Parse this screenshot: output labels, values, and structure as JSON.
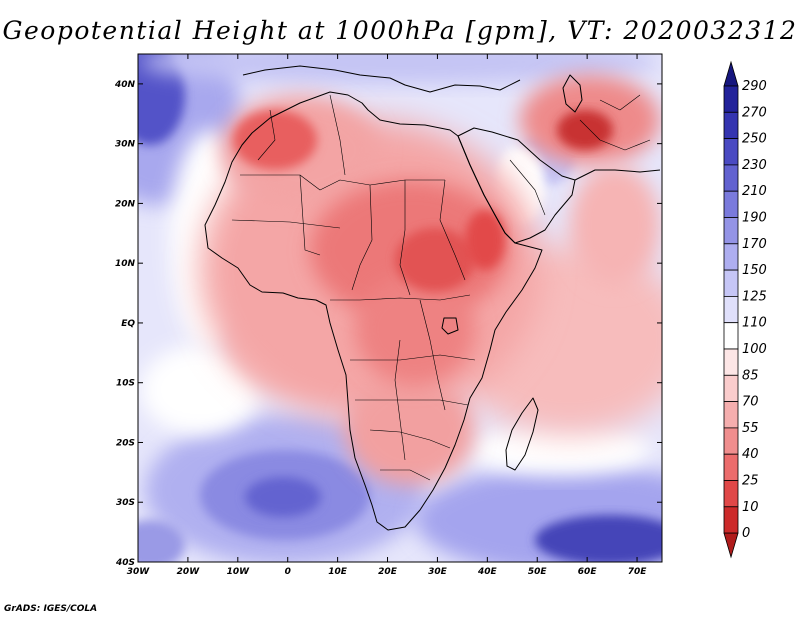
{
  "title": "Geopotential Height at 1000hPa [gpm], VT: 2020032312",
  "credit": "GrADS: IGES/COLA",
  "map": {
    "lon_range": [
      -30,
      75
    ],
    "lat_range": [
      -40,
      45
    ],
    "lon_ticks": [
      {
        "value": -30,
        "label": "30W"
      },
      {
        "value": -20,
        "label": "20W"
      },
      {
        "value": -10,
        "label": "10W"
      },
      {
        "value": 0,
        "label": "0"
      },
      {
        "value": 10,
        "label": "10E"
      },
      {
        "value": 20,
        "label": "20E"
      },
      {
        "value": 30,
        "label": "30E"
      },
      {
        "value": 40,
        "label": "40E"
      },
      {
        "value": 50,
        "label": "50E"
      },
      {
        "value": 60,
        "label": "60E"
      },
      {
        "value": 70,
        "label": "70E"
      }
    ],
    "lat_ticks": [
      {
        "value": 40,
        "label": "40N"
      },
      {
        "value": 30,
        "label": "30N"
      },
      {
        "value": 20,
        "label": "20N"
      },
      {
        "value": 10,
        "label": "10N"
      },
      {
        "value": 0,
        "label": "EQ"
      },
      {
        "value": -10,
        "label": "10S"
      },
      {
        "value": -20,
        "label": "20S"
      },
      {
        "value": -30,
        "label": "30S"
      },
      {
        "value": -40,
        "label": "40S"
      }
    ]
  },
  "colorbar": {
    "levels": [
      "0",
      "10",
      "25",
      "40",
      "55",
      "70",
      "85",
      "100",
      "110",
      "125",
      "150",
      "170",
      "190",
      "210",
      "230",
      "250",
      "270",
      "290"
    ],
    "colors": [
      "#b01c1c",
      "#cc2a2a",
      "#e04848",
      "#ec6c6c",
      "#f08e8e",
      "#f5aeae",
      "#facccc",
      "#fde6e6",
      "#ffffff",
      "#e0e0fb",
      "#c6c6f6",
      "#aeaef0",
      "#9494e6",
      "#7a7adc",
      "#6262d0",
      "#4a4ac2",
      "#3434b0",
      "#22229a",
      "#16167e"
    ]
  }
}
